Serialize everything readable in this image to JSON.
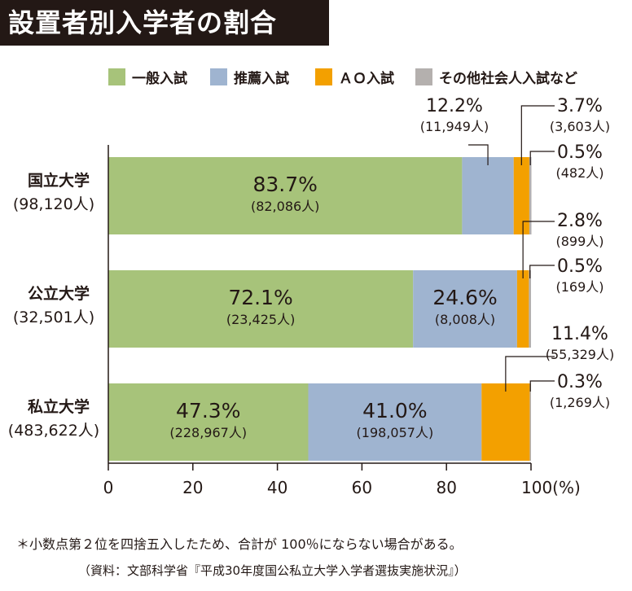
{
  "title": "設置者別入学者の割合",
  "note": "＊小数点第２位を四捨五入したため、合計が 100％にならない場合がある。",
  "source": "（資料：文部科学省『平成30年度国公私立大学入学者選抜実施状況』）",
  "chart_data": {
    "type": "bar",
    "orientation": "horizontal",
    "stacked": true,
    "title": "設置者別入学者の割合",
    "xlim": [
      0,
      100
    ],
    "x_ticks": [
      "0",
      "20",
      "40",
      "60",
      "80",
      "100(%)"
    ],
    "legend_position": "top",
    "categories": [
      {
        "label": "国立大学",
        "sublabel": "(98,120人)"
      },
      {
        "label": "公立大学",
        "sublabel": "(32,501人)"
      },
      {
        "label": "私立大学",
        "sublabel": "(483,622人)"
      }
    ],
    "series": [
      {
        "name": "一般入試",
        "color": "#a7c37a",
        "values": [
          83.7,
          72.1,
          47.3
        ],
        "labels": [
          "83.7%",
          "72.1%",
          "47.3%"
        ],
        "counts": [
          "(82,086人)",
          "(23,425人)",
          "(228,967人)"
        ]
      },
      {
        "name": "推薦入試",
        "color": "#9fb4d0",
        "values": [
          12.2,
          24.6,
          41.0
        ],
        "labels": [
          "12.2%",
          "24.6%",
          "41.0%"
        ],
        "counts": [
          "(11,949人)",
          "(8,008人)",
          "(198,057人)"
        ]
      },
      {
        "name": "ＡＯ入試",
        "color": "#f3a000",
        "values": [
          3.7,
          2.8,
          11.4
        ],
        "labels": [
          "3.7%",
          "2.8%",
          "11.4%"
        ],
        "counts": [
          "(3,603人)",
          "(899人)",
          "(55,329人)"
        ]
      },
      {
        "name": "その他社会人入試など",
        "color": "#b4b0ae",
        "values": [
          0.5,
          0.5,
          0.3
        ],
        "labels": [
          "0.5%",
          "0.5%",
          "0.3%"
        ],
        "counts": [
          "(482人)",
          "(169人)",
          "(1,269人)"
        ]
      }
    ]
  }
}
